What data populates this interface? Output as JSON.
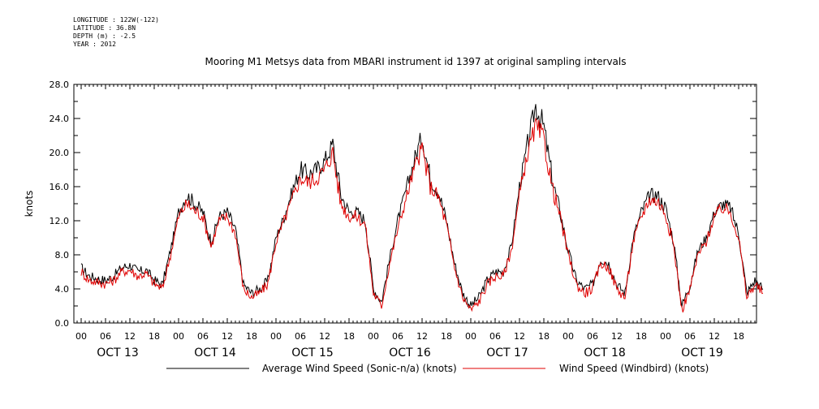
{
  "header": {
    "longitude": "LONGITUDE : 122W(-122)",
    "latitude": "LATITUDE : 36.8N",
    "depth": "DEPTH (m) : -2.5",
    "year": "YEAR : 2012"
  },
  "chart_data": {
    "type": "line",
    "title": "Mooring M1 Metsys data from MBARI instrument id 1397 at original sampling intervals",
    "ylabel": "knots",
    "xlabel": "",
    "ylim": [
      0,
      28
    ],
    "y_ticks": [
      "0.0",
      "4.0",
      "8.0",
      "12.0",
      "16.0",
      "20.0",
      "24.0",
      "28.0"
    ],
    "x_hours": [
      0,
      168
    ],
    "x_hour_ticks": [
      "00",
      "06",
      "12",
      "18",
      "00",
      "06",
      "12",
      "18",
      "00",
      "06",
      "12",
      "18",
      "00",
      "06",
      "12",
      "18",
      "00",
      "06",
      "12",
      "18",
      "00",
      "06",
      "12",
      "18",
      "00",
      "06",
      "12",
      "18"
    ],
    "days": [
      "OCT 13",
      "OCT 14",
      "OCT 15",
      "OCT 16",
      "OCT 17",
      "OCT 18",
      "OCT 19"
    ],
    "grid": false,
    "legend_position": "bottom",
    "series": [
      {
        "name": "Average Wind Speed (Sonic-n/a) (knots)",
        "color": "#000000",
        "points": [
          [
            0,
            6.5
          ],
          [
            2,
            5.5
          ],
          [
            4,
            5.2
          ],
          [
            6,
            5.0
          ],
          [
            8,
            5.5
          ],
          [
            10,
            6.5
          ],
          [
            12,
            6.8
          ],
          [
            14,
            6.0
          ],
          [
            16,
            6.2
          ],
          [
            18,
            5.0
          ],
          [
            20,
            4.5
          ],
          [
            22,
            8.5
          ],
          [
            24,
            13.0
          ],
          [
            26,
            15.0
          ],
          [
            28,
            14.0
          ],
          [
            30,
            13.0
          ],
          [
            32,
            9.5
          ],
          [
            34,
            12.5
          ],
          [
            36,
            13.0
          ],
          [
            38,
            11.0
          ],
          [
            40,
            4.5
          ],
          [
            42,
            3.5
          ],
          [
            44,
            4.0
          ],
          [
            46,
            5.0
          ],
          [
            48,
            10.0
          ],
          [
            50,
            12.5
          ],
          [
            52,
            15.5
          ],
          [
            54,
            18.0
          ],
          [
            56,
            17.5
          ],
          [
            58,
            18.0
          ],
          [
            60,
            19.0
          ],
          [
            62,
            21.0
          ],
          [
            64,
            15.0
          ],
          [
            66,
            13.0
          ],
          [
            68,
            13.0
          ],
          [
            70,
            12.0
          ],
          [
            72,
            4.0
          ],
          [
            74,
            2.5
          ],
          [
            76,
            7.5
          ],
          [
            78,
            12.0
          ],
          [
            80,
            15.5
          ],
          [
            82,
            19.0
          ],
          [
            84,
            22.0
          ],
          [
            86,
            17.0
          ],
          [
            88,
            15.5
          ],
          [
            90,
            12.0
          ],
          [
            92,
            7.0
          ],
          [
            94,
            3.5
          ],
          [
            96,
            2.0
          ],
          [
            98,
            3.0
          ],
          [
            100,
            5.0
          ],
          [
            102,
            6.0
          ],
          [
            104,
            6.0
          ],
          [
            106,
            9.0
          ],
          [
            108,
            16.0
          ],
          [
            110,
            21.0
          ],
          [
            112,
            25.5
          ],
          [
            114,
            23.0
          ],
          [
            116,
            17.0
          ],
          [
            118,
            13.0
          ],
          [
            120,
            8.5
          ],
          [
            122,
            5.0
          ],
          [
            124,
            4.0
          ],
          [
            126,
            4.5
          ],
          [
            128,
            7.5
          ],
          [
            130,
            7.0
          ],
          [
            132,
            4.5
          ],
          [
            134,
            3.5
          ],
          [
            136,
            10.0
          ],
          [
            138,
            13.0
          ],
          [
            140,
            15.0
          ],
          [
            142,
            15.0
          ],
          [
            144,
            13.5
          ],
          [
            146,
            9.5
          ],
          [
            148,
            2.0
          ],
          [
            150,
            4.5
          ],
          [
            152,
            8.5
          ],
          [
            154,
            10.0
          ],
          [
            156,
            13.0
          ],
          [
            158,
            14.0
          ],
          [
            160,
            13.5
          ],
          [
            162,
            10.5
          ],
          [
            164,
            3.5
          ],
          [
            166,
            5.0
          ],
          [
            168,
            4.0
          ]
        ]
      },
      {
        "name": "Wind Speed (Windbird) (knots)",
        "color": "#e00000",
        "points": [
          [
            0,
            6.0
          ],
          [
            2,
            5.0
          ],
          [
            4,
            4.8
          ],
          [
            6,
            4.6
          ],
          [
            8,
            5.0
          ],
          [
            10,
            6.0
          ],
          [
            12,
            6.2
          ],
          [
            14,
            5.5
          ],
          [
            16,
            5.8
          ],
          [
            18,
            4.6
          ],
          [
            20,
            4.0
          ],
          [
            22,
            8.0
          ],
          [
            24,
            12.5
          ],
          [
            26,
            14.0
          ],
          [
            28,
            13.2
          ],
          [
            30,
            12.5
          ],
          [
            32,
            9.0
          ],
          [
            34,
            12.0
          ],
          [
            36,
            12.5
          ],
          [
            38,
            10.5
          ],
          [
            40,
            4.0
          ],
          [
            42,
            3.0
          ],
          [
            44,
            3.5
          ],
          [
            46,
            4.6
          ],
          [
            48,
            9.5
          ],
          [
            50,
            12.0
          ],
          [
            52,
            14.5
          ],
          [
            54,
            17.0
          ],
          [
            56,
            16.5
          ],
          [
            58,
            17.0
          ],
          [
            60,
            18.0
          ],
          [
            62,
            20.0
          ],
          [
            64,
            14.0
          ],
          [
            66,
            12.5
          ],
          [
            68,
            12.5
          ],
          [
            70,
            11.5
          ],
          [
            72,
            3.5
          ],
          [
            74,
            2.0
          ],
          [
            76,
            7.0
          ],
          [
            78,
            11.0
          ],
          [
            80,
            14.5
          ],
          [
            82,
            18.0
          ],
          [
            84,
            20.5
          ],
          [
            86,
            16.0
          ],
          [
            88,
            14.8
          ],
          [
            90,
            11.5
          ],
          [
            92,
            6.5
          ],
          [
            94,
            3.0
          ],
          [
            96,
            1.5
          ],
          [
            98,
            2.5
          ],
          [
            100,
            4.5
          ],
          [
            102,
            5.5
          ],
          [
            104,
            5.5
          ],
          [
            106,
            8.5
          ],
          [
            108,
            15.0
          ],
          [
            110,
            20.0
          ],
          [
            112,
            23.0
          ],
          [
            114,
            21.5
          ],
          [
            116,
            16.0
          ],
          [
            118,
            12.5
          ],
          [
            120,
            8.0
          ],
          [
            122,
            4.5
          ],
          [
            124,
            3.5
          ],
          [
            126,
            4.0
          ],
          [
            128,
            7.0
          ],
          [
            130,
            6.5
          ],
          [
            132,
            4.0
          ],
          [
            134,
            3.0
          ],
          [
            136,
            9.5
          ],
          [
            138,
            12.5
          ],
          [
            140,
            14.5
          ],
          [
            142,
            14.3
          ],
          [
            144,
            12.8
          ],
          [
            146,
            9.0
          ],
          [
            148,
            1.5
          ],
          [
            150,
            4.0
          ],
          [
            152,
            8.0
          ],
          [
            154,
            9.5
          ],
          [
            156,
            12.5
          ],
          [
            158,
            13.5
          ],
          [
            160,
            13.0
          ],
          [
            162,
            10.0
          ],
          [
            164,
            3.0
          ],
          [
            166,
            4.5
          ],
          [
            168,
            3.5
          ]
        ]
      }
    ]
  }
}
